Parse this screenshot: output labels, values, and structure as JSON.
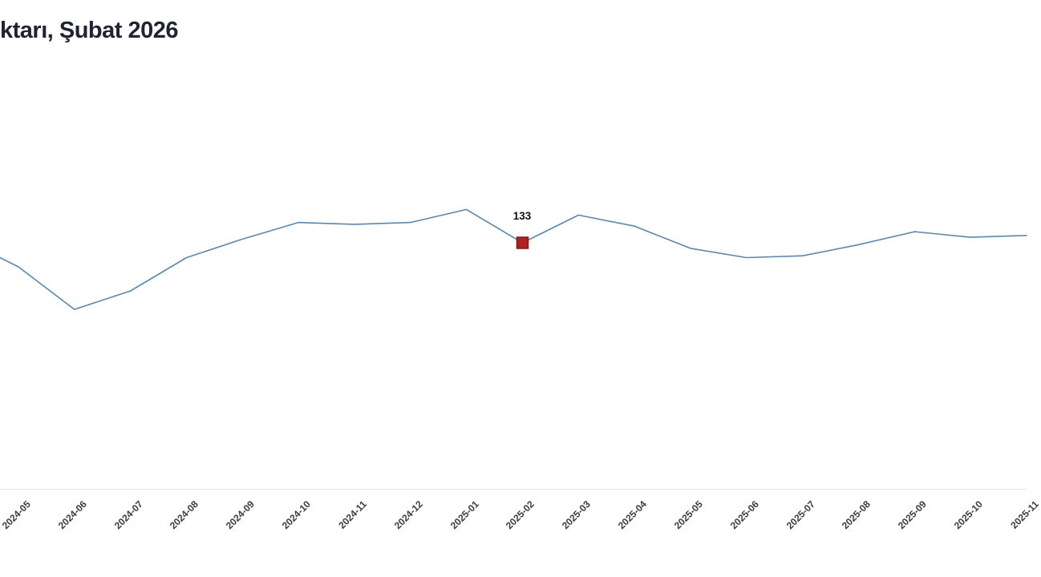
{
  "header": {
    "title_visible": "ktarı, Şubat 2026"
  },
  "colors": {
    "line": "#5b87ab",
    "marker_fill": "#b01f24",
    "marker_border": "#83161a",
    "point_label": "#111111",
    "title": "#1f2430",
    "tick_label": "#3b3b3b",
    "axis_line": "#e4e4e4",
    "background": "#ffffff"
  },
  "chart_data": {
    "type": "line",
    "title": "ktarı, Şubat 2026",
    "xlabel": "",
    "ylabel": "",
    "grid": false,
    "legend": "none",
    "y_axis_visible": false,
    "x_axis_cropped_at_edges": true,
    "categories": [
      "2024-05",
      "2024-06",
      "2024-07",
      "2024-08",
      "2024-09",
      "2024-10",
      "2024-11",
      "2024-12",
      "2025-01",
      "2025-02",
      "2025-03",
      "2025-04",
      "2025-05",
      "2025-06",
      "2025-07",
      "2025-08",
      "2025-09",
      "2025-10",
      "2025-11"
    ],
    "values": [
      120,
      97,
      107,
      125,
      135,
      144,
      143,
      144,
      151,
      133,
      148,
      142,
      130,
      125,
      126,
      132,
      139,
      136,
      137
    ],
    "line_enters_left_at_value": 125,
    "labeled_point": {
      "category": "2025-02",
      "label": "133",
      "value": 133
    }
  }
}
